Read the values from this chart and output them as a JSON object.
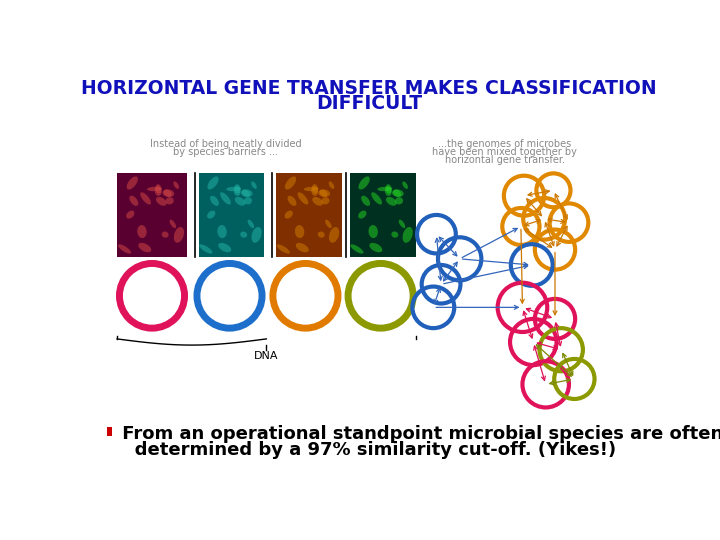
{
  "title_line1": "HORIZONTAL GENE TRANSFER MAKES CLASSIFICATION",
  "title_line2": "DIFFICULT",
  "title_color": "#1111BB",
  "title_fontsize": 13.5,
  "title_fontweight": "bold",
  "bullet_color": "#CC0000",
  "bullet_text_line1": " From an operational standpoint microbial species are often",
  "bullet_text_line2": "   determined by a 97% similarity cut-off. (Yikes!)",
  "bullet_fontsize": 13,
  "bullet_fontweight": "bold",
  "bg_color": "#FFFFFF",
  "caption_left_line1": "Instead of being neatly divided",
  "caption_left_line2": "by species barriers ...",
  "caption_right_line1": "...the genomes of microbes",
  "caption_right_line2": "have been mixed together by",
  "caption_right_line3": "horizontal gene transfer.",
  "caption_fontsize": 7,
  "caption_color": "#888888",
  "dna_label": "DNA",
  "box_colors": [
    "#5A0030",
    "#006060",
    "#803000",
    "#003020"
  ],
  "box_highlight_colors": [
    "#CC4444",
    "#20B0A0",
    "#CC7700",
    "#22CC22"
  ],
  "ring_colors_left": [
    "#E0135A",
    "#1E6FCC",
    "#E07B00",
    "#8C9900"
  ],
  "blue": "#2060BB",
  "gold": "#E08800",
  "red": "#E0135A",
  "olive": "#8C9900",
  "arrow_blue": "#3366BB",
  "arrow_red": "#DD1155",
  "arrow_gold": "#CC7700",
  "arrow_olive": "#7A8800"
}
